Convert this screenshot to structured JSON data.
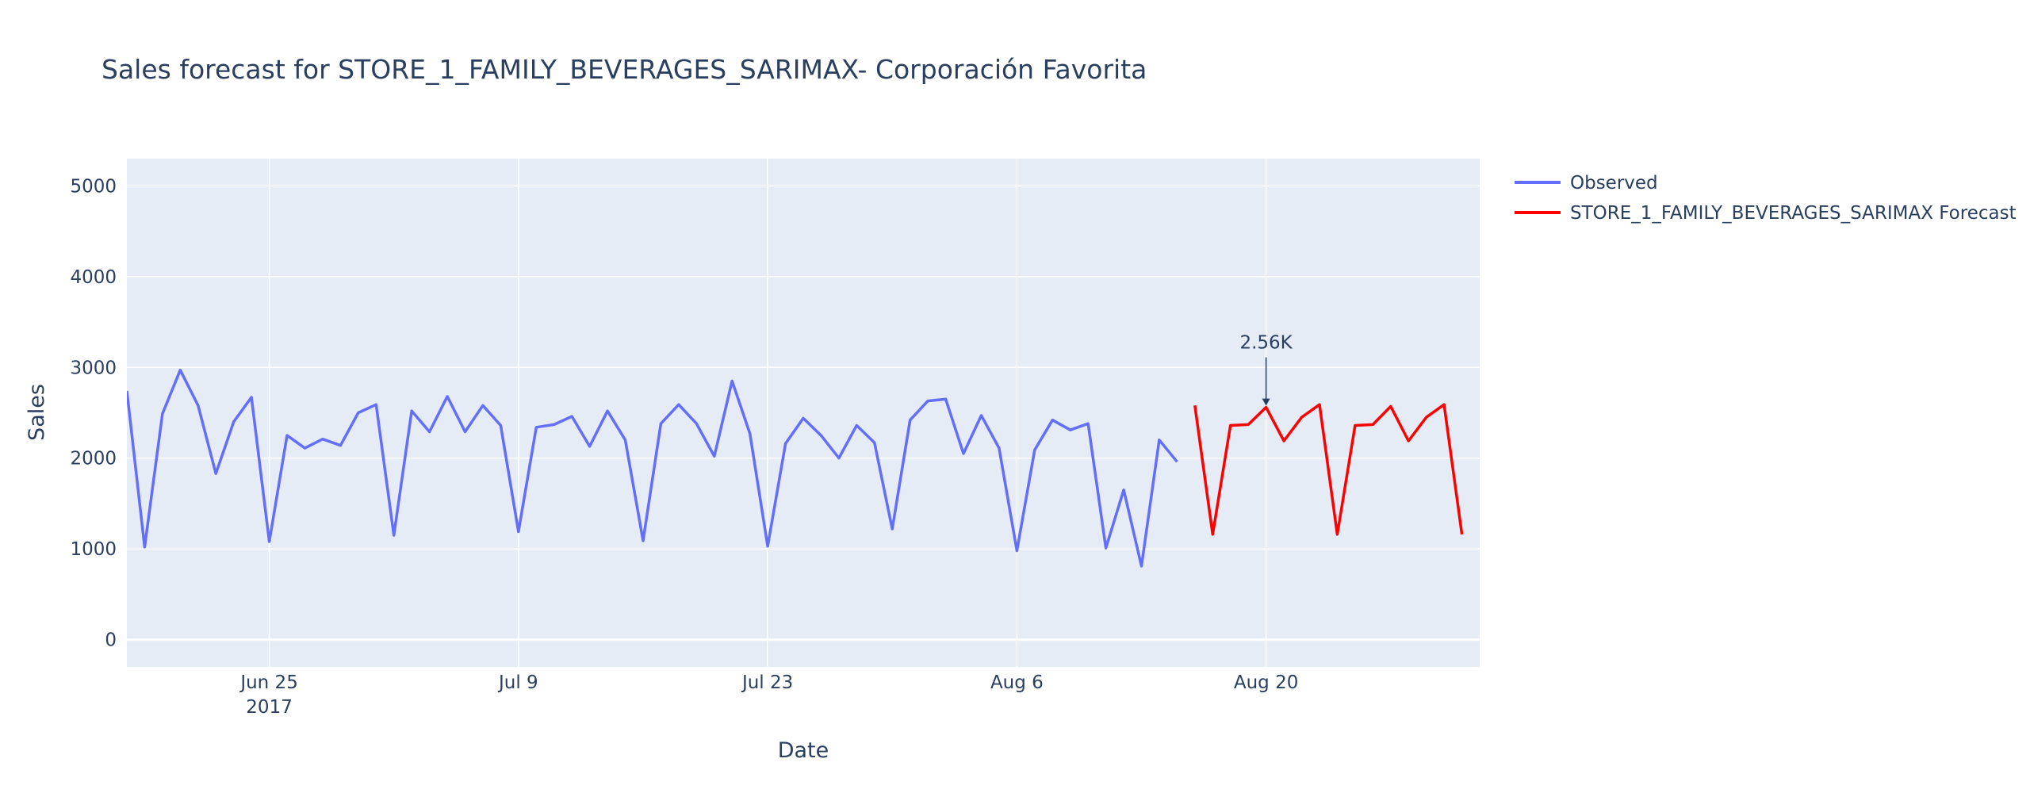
{
  "chart_data": {
    "type": "line",
    "title": "Sales forecast for STORE_1_FAMILY_BEVERAGES_SARIMAX- Corporación Favorita",
    "xlabel": "Date",
    "ylabel": "Sales",
    "ylim": [
      -300,
      5300
    ],
    "yticks": [
      0,
      1000,
      2000,
      3000,
      4000,
      5000
    ],
    "xlim": [
      "2017-06-17",
      "2017-09-01"
    ],
    "xticks": [
      {
        "date": "2017-06-25",
        "label": "Jun 25",
        "sublabel": "2017"
      },
      {
        "date": "2017-07-09",
        "label": "Jul 9",
        "sublabel": ""
      },
      {
        "date": "2017-07-23",
        "label": "Jul 23",
        "sublabel": ""
      },
      {
        "date": "2017-08-06",
        "label": "Aug 6",
        "sublabel": ""
      },
      {
        "date": "2017-08-20",
        "label": "Aug 20",
        "sublabel": ""
      }
    ],
    "grid": true,
    "legend_position": "top-right, outside plot",
    "series": [
      {
        "name": "Observed",
        "color": "#636efa",
        "start_date": "2017-06-17",
        "values": [
          2740,
          1020,
          2490,
          2970,
          2580,
          1830,
          2400,
          2670,
          1080,
          2250,
          2110,
          2210,
          2140,
          2500,
          2590,
          1150,
          2520,
          2290,
          2680,
          2290,
          2580,
          2360,
          1190,
          2340,
          2370,
          2460,
          2130,
          2520,
          2200,
          1090,
          2380,
          2590,
          2380,
          2020,
          2850,
          2270,
          1030,
          2160,
          2440,
          2250,
          2000,
          2360,
          2170,
          1220,
          2420,
          2630,
          2650,
          2050,
          2470,
          2110,
          980,
          2090,
          2420,
          2310,
          2380,
          1010,
          1650,
          810,
          2200,
          1960
        ]
      },
      {
        "name": "STORE_1_FAMILY_BEVERAGES_SARIMAX Forecast",
        "color": "#ff0000",
        "start_date": "2017-08-16",
        "values": [
          2580,
          1160,
          2360,
          2370,
          2560,
          2190,
          2450,
          2590,
          1160,
          2360,
          2370,
          2570,
          2190,
          2450,
          2590,
          1160
        ]
      }
    ],
    "annotations": [
      {
        "text": "2.56K",
        "date": "2017-08-20",
        "value": 2560
      }
    ]
  }
}
